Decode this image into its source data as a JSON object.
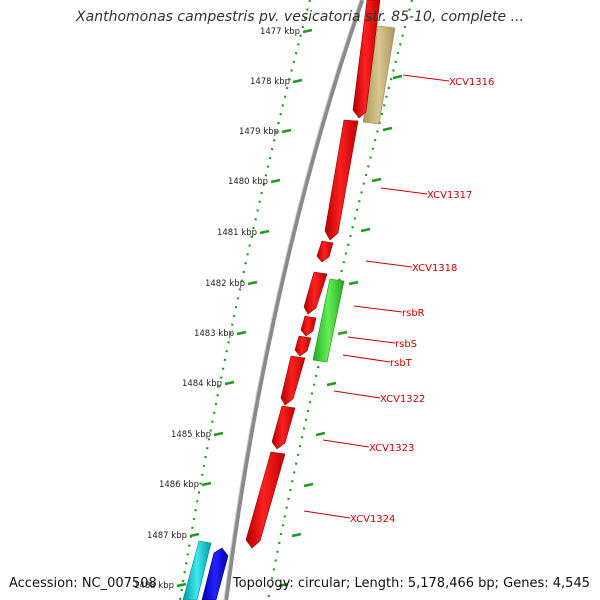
{
  "title": "Xanthomonas campestris pv. vesicatoria str. 85-10, complete ...",
  "accession": "Accession: NC_007508",
  "summary": "Topology: circular; Length: 5,178,466 bp; Genes: 4,545",
  "colors": {
    "backbone": "#888888",
    "ticks": "#229922",
    "label_text": "#222222",
    "gene_label": "#cc0000",
    "leader": "#cc0000",
    "forward_gene": "#ff0000",
    "reverse_gene_olive": "#c8b878",
    "reverse_gene_green": "#33cc33",
    "cyan_gene": "#00c8d0",
    "blue_gene": "#0000ee"
  },
  "ruler": [
    {
      "label": "1477 kbp"
    },
    {
      "label": "1478 kbp"
    },
    {
      "label": "1479 kbp"
    },
    {
      "label": "1480 kbp"
    },
    {
      "label": "1481 kbp"
    },
    {
      "label": "1482 kbp"
    },
    {
      "label": "1483 kbp"
    },
    {
      "label": "1484 kbp"
    },
    {
      "label": "1485 kbp"
    },
    {
      "label": "1486 kbp"
    },
    {
      "label": "1487 kbp"
    },
    {
      "label": "1488 kbp"
    }
  ],
  "gene_labels": [
    {
      "name": "XCV1316"
    },
    {
      "name": "XCV1317"
    },
    {
      "name": "XCV1318"
    },
    {
      "name": "rsbR"
    },
    {
      "name": "rsbS"
    },
    {
      "name": "rsbT"
    },
    {
      "name": "XCV1322"
    },
    {
      "name": "XCV1323"
    },
    {
      "name": "XCV1324"
    }
  ]
}
